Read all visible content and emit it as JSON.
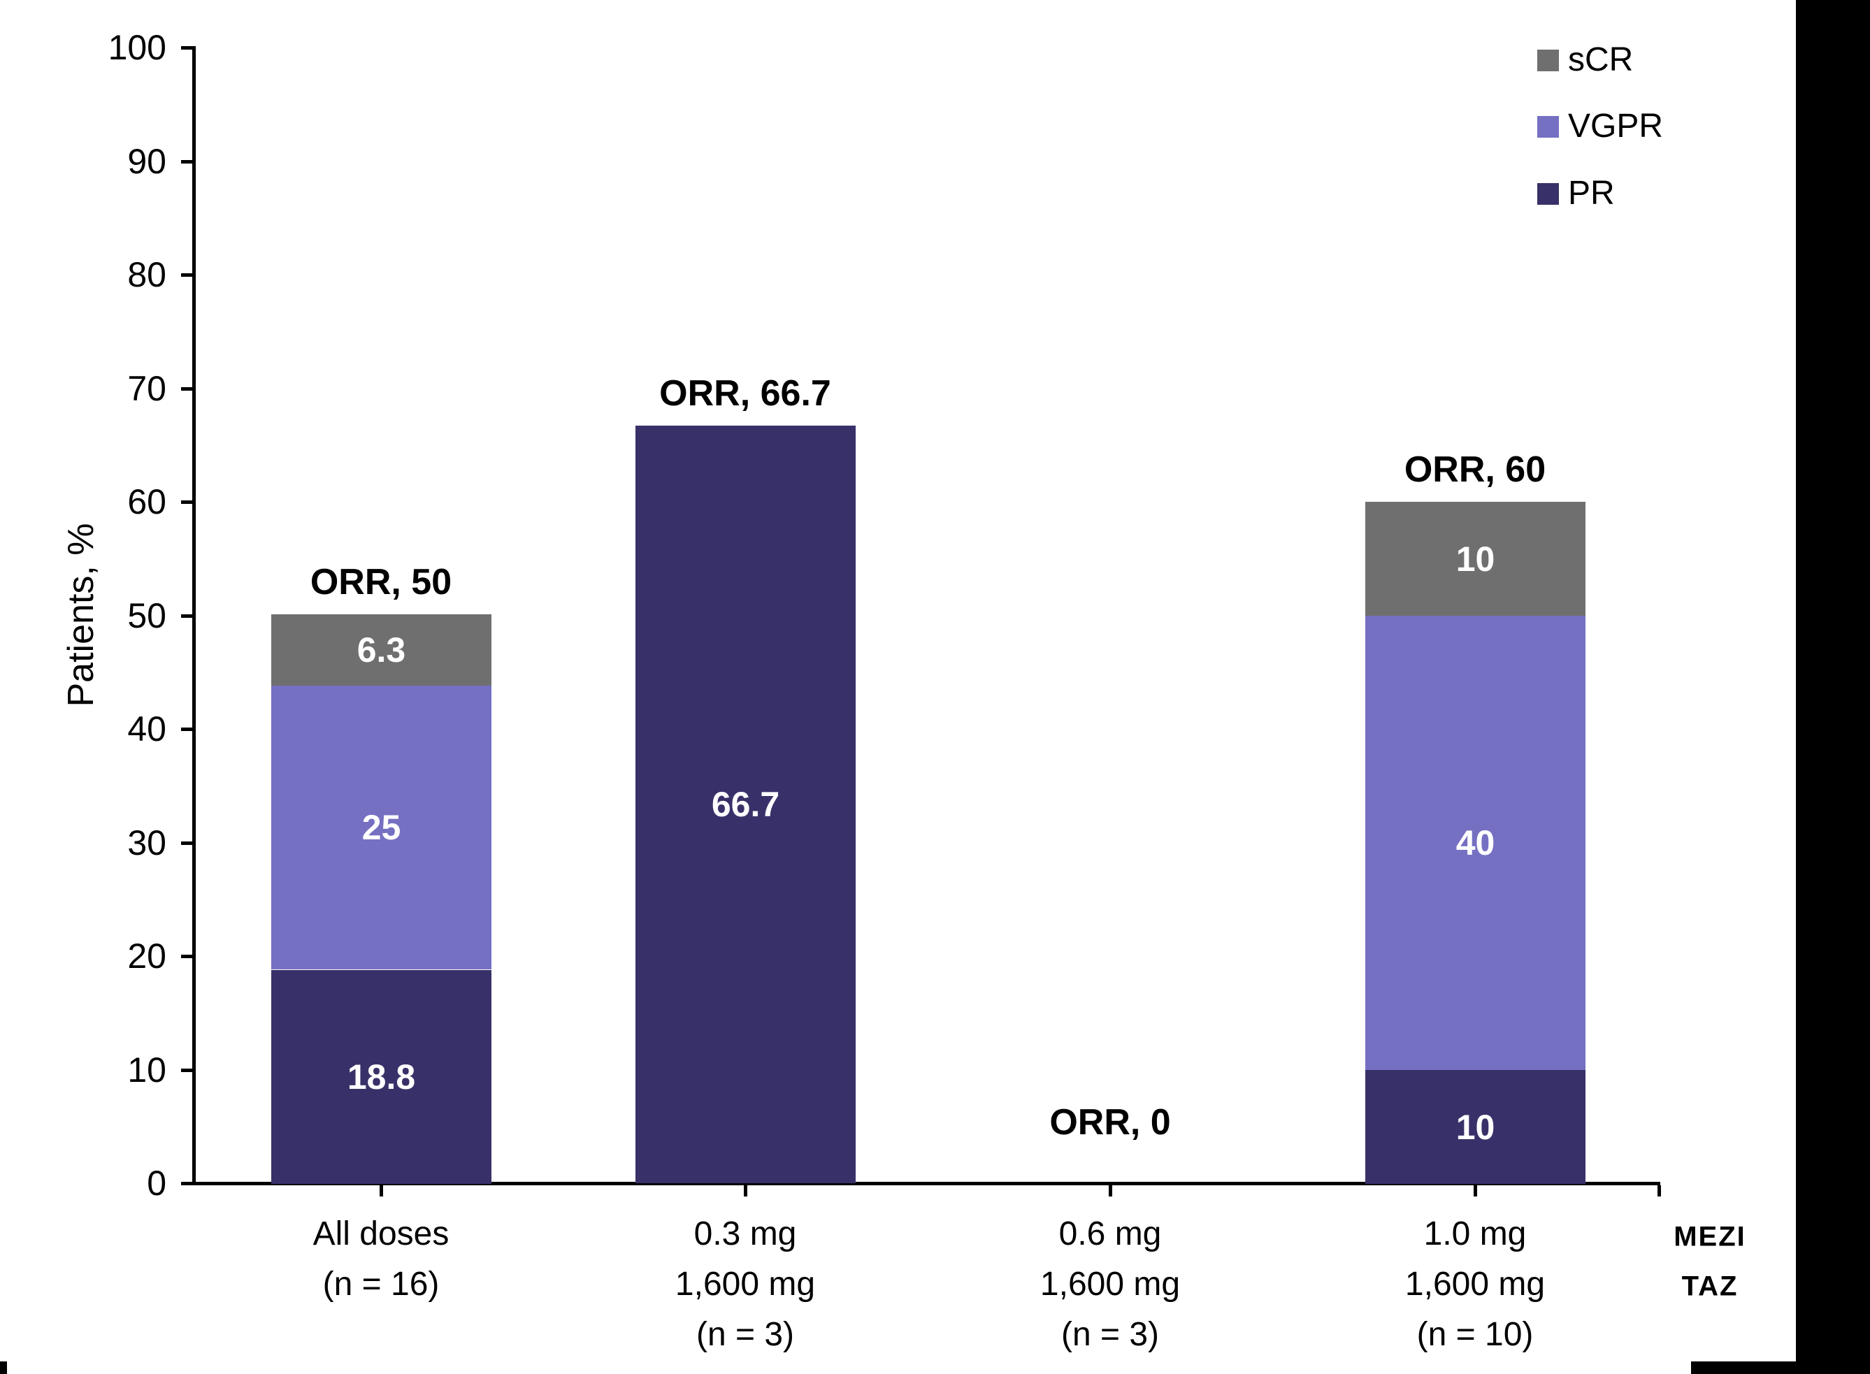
{
  "chart_data": {
    "type": "bar",
    "stacked": true,
    "title": "",
    "xlabel": "",
    "ylabel": "Patients, %",
    "ylim": [
      0,
      100
    ],
    "yticks": [
      0,
      10,
      20,
      30,
      40,
      50,
      60,
      70,
      80,
      90,
      100
    ],
    "grid": false,
    "legend_position": "top-right",
    "categories": [
      {
        "lines": [
          "All doses",
          "(n = 16)"
        ]
      },
      {
        "lines": [
          "0.3 mg",
          "1,600 mg",
          "(n = 3)"
        ]
      },
      {
        "lines": [
          "0.6 mg",
          "1,600 mg",
          "(n = 3)"
        ]
      },
      {
        "lines": [
          "1.0 mg",
          "1,600 mg",
          "(n = 10)"
        ]
      }
    ],
    "series": [
      {
        "name": "PR",
        "color": "#383169",
        "values": [
          18.8,
          66.7,
          0,
          10
        ],
        "labels": [
          "18.8",
          "66.7",
          "",
          "10"
        ]
      },
      {
        "name": "VGPR",
        "color": "#7570C2",
        "values": [
          25,
          0,
          0,
          40
        ],
        "labels": [
          "25",
          "",
          "",
          "40"
        ]
      },
      {
        "name": "sCR",
        "color": "#6F6F6F",
        "values": [
          6.3,
          0,
          0,
          10
        ],
        "labels": [
          "6.3",
          "",
          "",
          "10"
        ]
      }
    ],
    "legend_entries": [
      {
        "label": "sCR",
        "color": "#6F6F6F"
      },
      {
        "label": "VGPR",
        "color": "#7570C2"
      },
      {
        "label": "PR",
        "color": "#383169"
      }
    ],
    "orr_annotations": [
      "ORR, 50",
      "ORR, 66.7",
      "ORR, 0",
      "ORR, 60"
    ],
    "axis_color": "#000000",
    "bar_label_color": "#ffffff"
  },
  "side_labels": {
    "line1": "MEZI",
    "line2": "TAZ"
  }
}
